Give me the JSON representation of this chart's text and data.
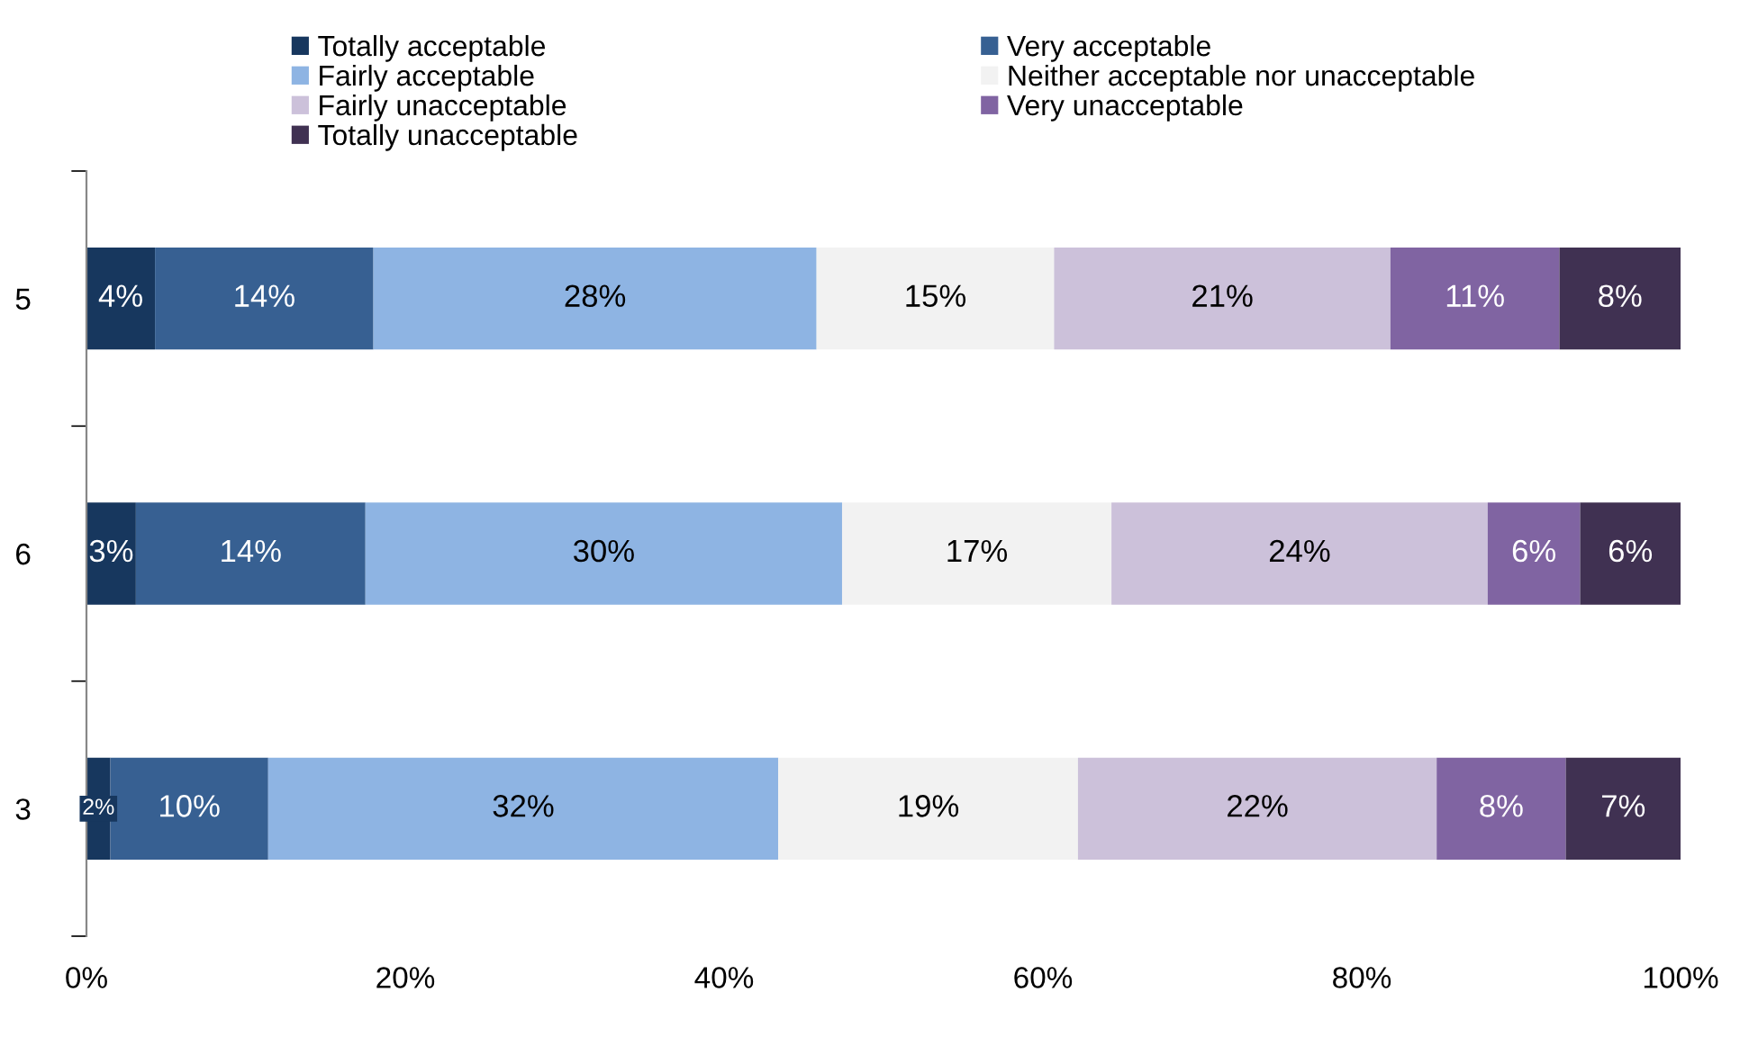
{
  "chart_data": {
    "type": "bar",
    "orientation": "horizontal",
    "stacked": true,
    "categories": [
      "5",
      "6",
      "3"
    ],
    "series": [
      {
        "name": "Totally acceptable",
        "color": "#17375e",
        "values": [
          4.3,
          3.1,
          1.5
        ],
        "value_labels": [
          "4%",
          "3%",
          "2%"
        ]
      },
      {
        "name": "Very acceptable",
        "color": "#376092",
        "values": [
          13.7,
          14.4,
          9.9
        ],
        "value_labels": [
          "14%",
          "14%",
          "10%"
        ]
      },
      {
        "name": "Fairly acceptable",
        "color": "#8eb4e3",
        "values": [
          27.8,
          29.9,
          32.0
        ],
        "value_labels": [
          "28%",
          "30%",
          "32%"
        ]
      },
      {
        "name": "Neither acceptable nor unacceptable",
        "color": "#f2f2f2",
        "values": [
          14.9,
          16.9,
          18.8
        ],
        "value_labels": [
          "15%",
          "17%",
          "19%"
        ]
      },
      {
        "name": "Fairly unacceptable",
        "color": "#ccc1da",
        "values": [
          21.1,
          23.6,
          22.5
        ],
        "value_labels": [
          "21%",
          "24%",
          "22%"
        ]
      },
      {
        "name": "Very unacceptable",
        "color": "#8064a2",
        "values": [
          10.6,
          5.8,
          8.1
        ],
        "value_labels": [
          "11%",
          "6%",
          "8%"
        ]
      },
      {
        "name": "Totally unacceptable",
        "color": "#403152",
        "values": [
          7.6,
          6.3,
          7.2
        ],
        "value_labels": [
          "8%",
          "6%",
          "7%"
        ]
      }
    ],
    "xlim": [
      0,
      100
    ],
    "xticks": [
      {
        "value": 0,
        "label": "0%"
      },
      {
        "value": 20,
        "label": "20%"
      },
      {
        "value": 40,
        "label": "40%"
      },
      {
        "value": 60,
        "label": "60%"
      },
      {
        "value": 80,
        "label": "80%"
      },
      {
        "value": 100,
        "label": "100%"
      }
    ],
    "grid": false,
    "legend": "top"
  }
}
